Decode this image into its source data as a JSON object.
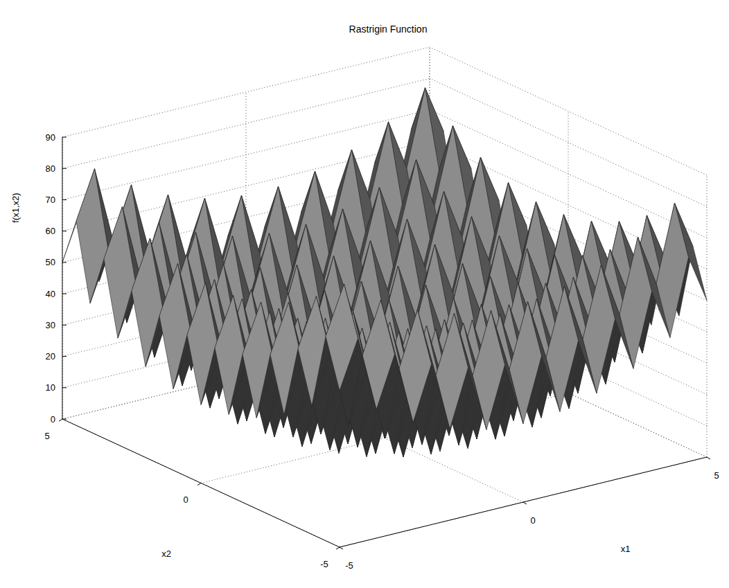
{
  "chart_data": {
    "type": "surface",
    "title": "Rastrigin Function",
    "x_label": "x1",
    "y_label": "x2",
    "z_label": "f(x1,x2)",
    "x": [
      -5,
      -4.5,
      -4,
      -3.5,
      -3,
      -2.5,
      -2,
      -1.5,
      -1,
      -0.5,
      0,
      0.5,
      1,
      1.5,
      2,
      2.5,
      3,
      3.5,
      4,
      4.5,
      5
    ],
    "y": [
      -5,
      -4.5,
      -4,
      -3.5,
      -3,
      -2.5,
      -2,
      -1.5,
      -1,
      -0.5,
      0,
      0.5,
      1,
      1.5,
      2,
      2.5,
      3,
      3.5,
      4,
      4.5,
      5
    ],
    "z": [
      [
        50,
        65.25,
        41,
        57.25,
        34,
        51.25,
        29,
        47.25,
        26,
        45.25,
        25,
        45.25,
        26,
        47.25,
        29,
        51.25,
        34,
        57.25,
        41,
        65.25,
        50
      ],
      [
        65.25,
        80.5,
        56.25,
        72.5,
        49.25,
        66.5,
        44.25,
        62.5,
        41.25,
        60.5,
        40.25,
        60.5,
        41.25,
        62.5,
        44.25,
        66.5,
        49.25,
        72.5,
        56.25,
        80.5,
        65.25
      ],
      [
        41,
        56.25,
        32,
        48.25,
        25,
        42.25,
        20,
        38.25,
        17,
        36.25,
        16,
        36.25,
        17,
        38.25,
        20,
        42.25,
        25,
        48.25,
        32,
        56.25,
        41
      ],
      [
        57.25,
        72.5,
        48.25,
        64.5,
        41.25,
        58.5,
        36.25,
        54.5,
        33.25,
        52.5,
        32.25,
        52.5,
        33.25,
        54.5,
        36.25,
        58.5,
        41.25,
        64.5,
        48.25,
        72.5,
        57.25
      ],
      [
        34,
        49.25,
        25,
        41.25,
        18,
        35.25,
        13,
        31.25,
        10,
        29.25,
        9,
        29.25,
        10,
        31.25,
        13,
        35.25,
        18,
        41.25,
        25,
        49.25,
        34
      ],
      [
        51.25,
        66.5,
        42.25,
        58.5,
        35.25,
        52.5,
        30.25,
        48.5,
        27.25,
        46.5,
        26.25,
        46.5,
        27.25,
        48.5,
        30.25,
        52.5,
        35.25,
        58.5,
        42.25,
        66.5,
        51.25
      ],
      [
        29,
        44.25,
        20,
        36.25,
        13,
        30.25,
        8,
        26.25,
        5,
        24.25,
        4,
        24.25,
        5,
        26.25,
        8,
        30.25,
        13,
        36.25,
        20,
        44.25,
        29
      ],
      [
        47.25,
        62.5,
        38.25,
        54.5,
        31.25,
        48.5,
        26.25,
        44.5,
        23.25,
        42.5,
        22.25,
        42.5,
        23.25,
        44.5,
        26.25,
        48.5,
        31.25,
        54.5,
        38.25,
        62.5,
        47.25
      ],
      [
        26,
        41.25,
        17,
        33.25,
        10,
        27.25,
        5,
        23.25,
        2,
        21.25,
        1,
        21.25,
        2,
        23.25,
        5,
        27.25,
        10,
        33.25,
        17,
        41.25,
        26
      ],
      [
        45.25,
        60.5,
        36.25,
        52.5,
        29.25,
        46.5,
        24.25,
        42.5,
        21.25,
        40.5,
        20.25,
        40.5,
        21.25,
        42.5,
        24.25,
        46.5,
        29.25,
        52.5,
        36.25,
        60.5,
        45.25
      ],
      [
        25,
        40.25,
        16,
        32.25,
        9,
        26.25,
        4,
        22.25,
        1,
        20.25,
        0,
        20.25,
        1,
        22.25,
        4,
        26.25,
        9,
        32.25,
        16,
        40.25,
        25
      ],
      [
        45.25,
        60.5,
        36.25,
        52.5,
        29.25,
        46.5,
        24.25,
        42.5,
        21.25,
        40.5,
        20.25,
        40.5,
        21.25,
        42.5,
        24.25,
        46.5,
        29.25,
        52.5,
        36.25,
        60.5,
        45.25
      ],
      [
        26,
        41.25,
        17,
        33.25,
        10,
        27.25,
        5,
        23.25,
        2,
        21.25,
        1,
        21.25,
        2,
        23.25,
        5,
        27.25,
        10,
        33.25,
        17,
        41.25,
        26
      ],
      [
        47.25,
        62.5,
        38.25,
        54.5,
        31.25,
        48.5,
        26.25,
        44.5,
        23.25,
        42.5,
        22.25,
        42.5,
        23.25,
        44.5,
        26.25,
        48.5,
        31.25,
        54.5,
        38.25,
        62.5,
        47.25
      ],
      [
        29,
        44.25,
        20,
        36.25,
        13,
        30.25,
        8,
        26.25,
        5,
        24.25,
        4,
        24.25,
        5,
        26.25,
        8,
        30.25,
        13,
        36.25,
        20,
        44.25,
        29
      ],
      [
        51.25,
        66.5,
        42.25,
        58.5,
        35.25,
        52.5,
        30.25,
        48.5,
        27.25,
        46.5,
        26.25,
        46.5,
        27.25,
        48.5,
        30.25,
        52.5,
        35.25,
        58.5,
        42.25,
        66.5,
        51.25
      ],
      [
        34,
        49.25,
        25,
        41.25,
        18,
        35.25,
        13,
        31.25,
        10,
        29.25,
        9,
        29.25,
        10,
        31.25,
        13,
        35.25,
        18,
        41.25,
        25,
        49.25,
        34
      ],
      [
        57.25,
        72.5,
        48.25,
        64.5,
        41.25,
        58.5,
        36.25,
        54.5,
        33.25,
        52.5,
        32.25,
        52.5,
        33.25,
        54.5,
        36.25,
        58.5,
        41.25,
        64.5,
        48.25,
        72.5,
        57.25
      ],
      [
        41,
        56.25,
        32,
        48.25,
        25,
        42.25,
        20,
        38.25,
        17,
        36.25,
        16,
        36.25,
        17,
        38.25,
        20,
        42.25,
        25,
        48.25,
        32,
        56.25,
        41
      ],
      [
        65.25,
        80.5,
        56.25,
        72.5,
        49.25,
        66.5,
        44.25,
        62.5,
        41.25,
        60.5,
        40.25,
        60.5,
        41.25,
        62.5,
        44.25,
        66.5,
        49.25,
        72.5,
        56.25,
        80.5,
        65.25
      ],
      [
        50,
        65.25,
        41,
        57.25,
        34,
        51.25,
        29,
        47.25,
        26,
        45.25,
        25,
        45.25,
        26,
        47.25,
        29,
        51.25,
        34,
        57.25,
        41,
        65.25,
        50
      ]
    ],
    "xlim": [
      -5,
      5
    ],
    "xticks": [
      -5,
      0,
      5
    ],
    "ylim": [
      -5,
      5
    ],
    "yticks": [
      -5,
      0,
      5
    ],
    "zlim": [
      0,
      90
    ],
    "zticks": [
      0,
      10,
      20,
      30,
      40,
      50,
      60,
      70,
      80,
      90
    ],
    "grid": true,
    "color": "#808080"
  }
}
